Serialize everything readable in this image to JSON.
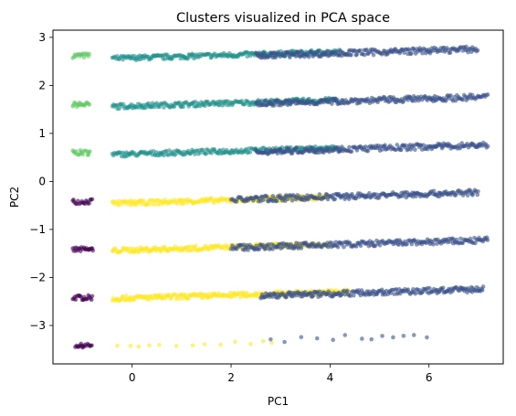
{
  "chart_data": {
    "type": "scatter",
    "title": "Clusters visualized in PCA space",
    "xlabel": "PC1",
    "ylabel": "PC2",
    "xlim": [
      -1.6,
      7.5
    ],
    "ylim": [
      -3.8,
      3.15
    ],
    "xticks": [
      0,
      2,
      4,
      6
    ],
    "xtick_labels": [
      "0",
      "2",
      "4",
      "6"
    ],
    "yticks": [
      -3,
      -2,
      -1,
      0,
      1,
      2,
      3
    ],
    "ytick_labels": [
      "−3",
      "−2",
      "−1",
      "0",
      "1",
      "2",
      "3"
    ],
    "grid": false,
    "legend": null,
    "point_alpha": 0.6,
    "clusters": [
      {
        "color": "#5ec962",
        "bands": [
          {
            "y": 2.62,
            "x_start": -1.2,
            "x_end": -0.85,
            "y_spread": 0.05
          },
          {
            "y": 1.6,
            "x_start": -1.2,
            "x_end": -0.85,
            "y_spread": 0.05
          },
          {
            "y": 0.6,
            "x_start": -1.2,
            "x_end": -0.85,
            "y_spread": 0.05
          }
        ]
      },
      {
        "color": "#440154",
        "bands": [
          {
            "y": -0.42,
            "x_start": -1.2,
            "x_end": -0.78,
            "y_spread": 0.05
          },
          {
            "y": -1.42,
            "x_start": -1.2,
            "x_end": -0.78,
            "y_spread": 0.05
          },
          {
            "y": -2.42,
            "x_start": -1.2,
            "x_end": -0.78,
            "y_spread": 0.05
          },
          {
            "y": -3.42,
            "x_start": -1.15,
            "x_end": -0.8,
            "y_spread": 0.04
          }
        ]
      },
      {
        "color": "#21918c",
        "bands": [
          {
            "y": 2.56,
            "x_start": -0.4,
            "x_end": 4.2,
            "slope": 0.03,
            "y_spread": 0.05
          },
          {
            "y": 1.56,
            "x_start": -0.4,
            "x_end": 4.2,
            "slope": 0.03,
            "y_spread": 0.05
          },
          {
            "y": 0.56,
            "x_start": -0.4,
            "x_end": 4.2,
            "slope": 0.03,
            "y_spread": 0.05
          }
        ]
      },
      {
        "color": "#fde725",
        "bands": [
          {
            "y": -0.46,
            "x_start": -0.4,
            "x_end": 4.0,
            "slope": 0.03,
            "y_spread": 0.05
          },
          {
            "y": -1.44,
            "x_start": -0.4,
            "x_end": 4.0,
            "slope": 0.03,
            "y_spread": 0.05
          },
          {
            "y": -2.44,
            "x_start": -0.4,
            "x_end": 4.4,
            "slope": 0.03,
            "y_spread": 0.05
          },
          {
            "y": -3.44,
            "x_start": -0.3,
            "x_end": 3.0,
            "slope": 0.03,
            "y_spread": 0.05,
            "sparse": true
          }
        ]
      },
      {
        "color": "#3b528b",
        "bands": [
          {
            "y": 2.62,
            "x_start": 2.5,
            "x_end": 7.0,
            "slope": 0.03,
            "y_spread": 0.06
          },
          {
            "y": 1.62,
            "x_start": 2.5,
            "x_end": 7.2,
            "slope": 0.03,
            "y_spread": 0.06
          },
          {
            "y": 0.62,
            "x_start": 2.5,
            "x_end": 7.2,
            "slope": 0.03,
            "y_spread": 0.06
          },
          {
            "y": -0.38,
            "x_start": 2.0,
            "x_end": 7.0,
            "slope": 0.03,
            "y_spread": 0.06
          },
          {
            "y": -1.38,
            "x_start": 2.0,
            "x_end": 7.2,
            "slope": 0.03,
            "y_spread": 0.06
          },
          {
            "y": -2.38,
            "x_start": 2.6,
            "x_end": 7.1,
            "slope": 0.03,
            "y_spread": 0.06
          },
          {
            "y": -3.3,
            "x_start": 2.8,
            "x_end": 6.1,
            "slope": 0.03,
            "y_spread": 0.06,
            "sparse": true
          }
        ]
      }
    ]
  }
}
